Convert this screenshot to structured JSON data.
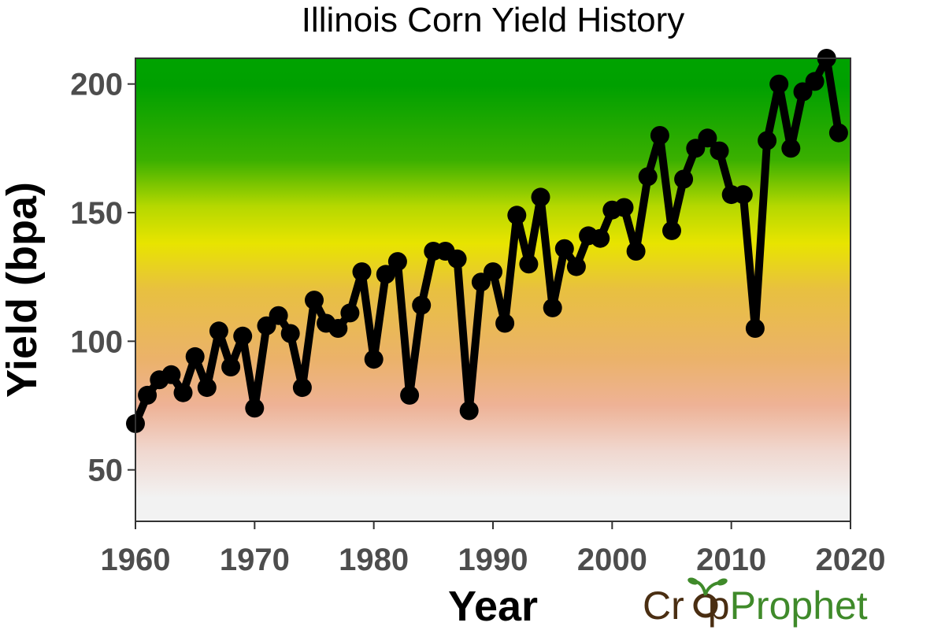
{
  "chart_data": {
    "type": "line",
    "title": "Illinois Corn Yield History",
    "xlabel": "Year",
    "ylabel": "Yield (bpa)",
    "xlim": [
      1960,
      2020
    ],
    "ylim": [
      30,
      210
    ],
    "x_ticks": [
      1960,
      1970,
      1980,
      1990,
      2000,
      2010,
      2020
    ],
    "y_ticks": [
      50,
      100,
      150,
      200
    ],
    "grid": false,
    "legend": "none",
    "background_gradient": "yield-colored: gray-white at low yields, pink/orange near 100, yellow near 135, green above 160",
    "line_color": "#000000",
    "series": [
      {
        "x": [
          1960,
          1961,
          1962,
          1963,
          1964,
          1965,
          1966,
          1967,
          1968,
          1969,
          1970,
          1971,
          1972,
          1973,
          1974,
          1975,
          1976,
          1977,
          1978,
          1979,
          1980,
          1981,
          1982,
          1983,
          1984,
          1985,
          1986,
          1987,
          1988,
          1989,
          1990,
          1991,
          1992,
          1993,
          1994,
          1995,
          1996,
          1997,
          1998,
          1999,
          2000,
          2001,
          2002,
          2003,
          2004,
          2005,
          2006,
          2007,
          2008,
          2009,
          2010,
          2011,
          2012,
          2013,
          2014,
          2015,
          2016,
          2017,
          2018,
          2019
        ],
        "values": [
          68,
          79,
          85,
          87,
          80,
          94,
          82,
          104,
          90,
          102,
          74,
          106,
          110,
          103,
          82,
          116,
          107,
          105,
          111,
          127,
          93,
          126,
          131,
          79,
          114,
          135,
          135,
          132,
          73,
          123,
          127,
          107,
          149,
          130,
          156,
          113,
          136,
          129,
          141,
          140,
          151,
          152,
          135,
          164,
          180,
          143,
          163,
          175,
          179,
          174,
          157,
          157,
          105,
          178,
          200,
          175,
          197,
          201,
          210,
          181
        ]
      }
    ]
  },
  "branding": {
    "logo_part1": "Cr",
    "logo_part2": "p",
    "logo_part3": "Prophet"
  }
}
